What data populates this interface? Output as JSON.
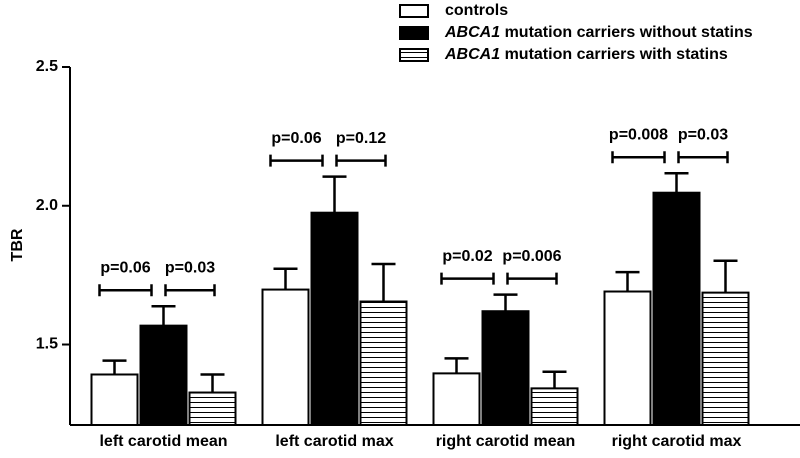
{
  "chart_data": {
    "type": "bar",
    "y_label": "TBR",
    "categories": [
      "left carotid mean",
      "left carotid max",
      "right carotid mean",
      "right carotid max"
    ],
    "series": [
      {
        "name": "controls",
        "color": "#ffffff",
        "values": [
          1.392,
          1.698,
          1.396,
          1.691
        ],
        "errors": [
          0.05,
          0.075,
          0.054,
          0.07
        ]
      },
      {
        "name": "ABCA1 mutation carriers without statins",
        "color": "#000000",
        "values": [
          1.568,
          1.975,
          1.62,
          2.047
        ],
        "errors": [
          0.07,
          0.13,
          0.06,
          0.07
        ]
      },
      {
        "name": "ABCA1 mutation carriers with statins",
        "color": "#ffffff",
        "pattern": "horizontal-lines",
        "values": [
          1.327,
          1.655,
          1.342,
          1.687
        ],
        "errors": [
          0.065,
          0.135,
          0.06,
          0.115
        ]
      }
    ],
    "annotations": [
      "p=0.06",
      "p=0.03",
      "p=0.06",
      "p=0.12",
      "p=0.02",
      "p=0.006",
      "p=0.008",
      "p=0.03"
    ],
    "ylim": [
      1.21,
      2.5
    ],
    "yticks": [
      1.5,
      {
        "value": 2,
        "label": "2.0"
      },
      2.5
    ],
    "grid": false,
    "legend": "top-right"
  }
}
